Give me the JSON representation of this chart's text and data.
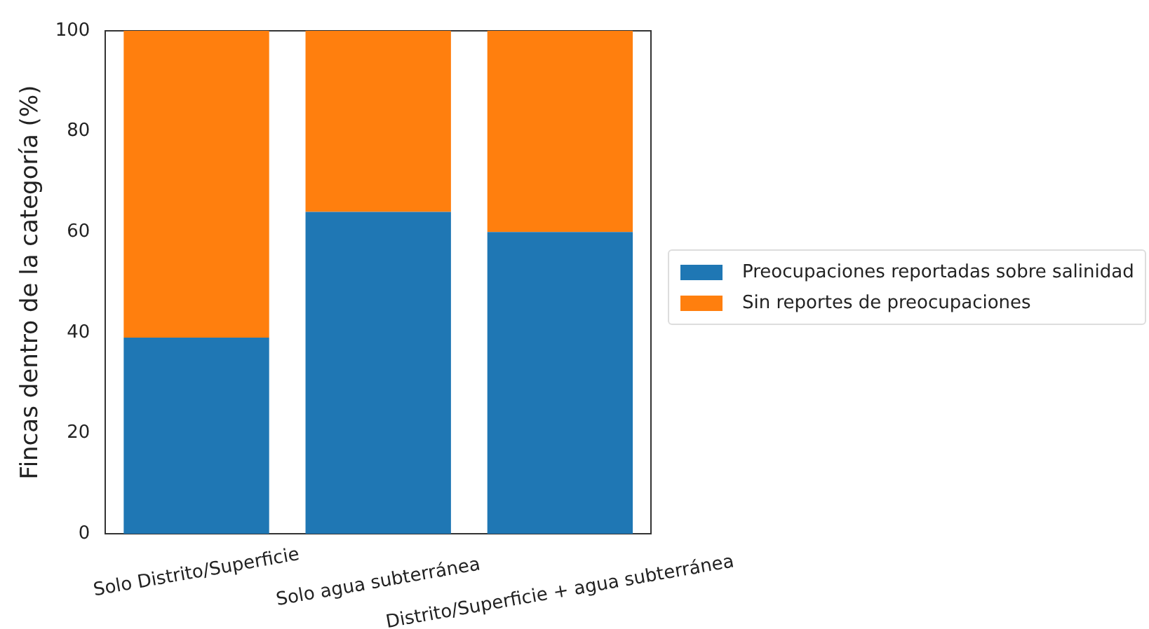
{
  "chart_data": {
    "type": "bar",
    "stacked": true,
    "ylabel": "Fincas dentro de la categoría (%)",
    "categories": [
      "Solo Distrito/Superficie",
      "Solo agua subterránea",
      "Distrito/Superficie + agua subterránea"
    ],
    "series": [
      {
        "name": "Preocupaciones reportadas sobre salinidad",
        "color": "#1f77b4",
        "values": [
          39,
          64,
          60
        ]
      },
      {
        "name": "Sin reportes de preocupaciones",
        "color": "#ff7f0e",
        "values": [
          61,
          36,
          40
        ]
      }
    ],
    "ylim": [
      0,
      100
    ],
    "yticks": [
      0,
      20,
      40,
      60,
      80,
      100
    ],
    "grid": false,
    "legend": "right"
  }
}
